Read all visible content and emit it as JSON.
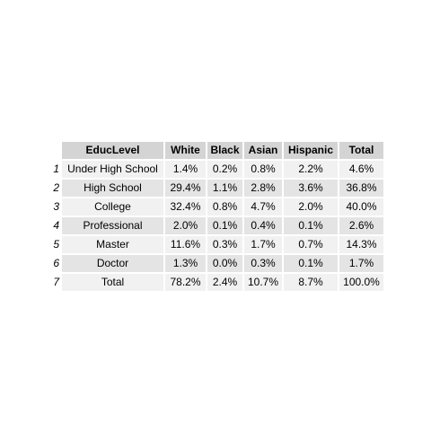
{
  "table": {
    "headers": [
      "EducLevel",
      "White",
      "Black",
      "Asian",
      "Hispanic",
      "Total"
    ],
    "rows": [
      {
        "index": "1",
        "cells": [
          "Under High School",
          "1.4%",
          "0.2%",
          "0.8%",
          "2.2%",
          "4.6%"
        ]
      },
      {
        "index": "2",
        "cells": [
          "High School",
          "29.4%",
          "1.1%",
          "2.8%",
          "3.6%",
          "36.8%"
        ]
      },
      {
        "index": "3",
        "cells": [
          "College",
          "32.4%",
          "0.8%",
          "4.7%",
          "2.0%",
          "40.0%"
        ]
      },
      {
        "index": "4",
        "cells": [
          "Professional",
          "2.0%",
          "0.1%",
          "0.4%",
          "0.1%",
          "2.6%"
        ]
      },
      {
        "index": "5",
        "cells": [
          "Master",
          "11.6%",
          "0.3%",
          "1.7%",
          "0.7%",
          "14.3%"
        ]
      },
      {
        "index": "6",
        "cells": [
          "Doctor",
          "1.3%",
          "0.0%",
          "0.3%",
          "0.1%",
          "1.7%"
        ]
      },
      {
        "index": "7",
        "cells": [
          "Total",
          "78.2%",
          "2.4%",
          "10.7%",
          "8.7%",
          "100.0%"
        ]
      }
    ]
  },
  "colors": {
    "header_bg": "#d4d4d4",
    "row_bg": "#f1f1f1",
    "row_alt_bg": "#e4e4e4"
  }
}
